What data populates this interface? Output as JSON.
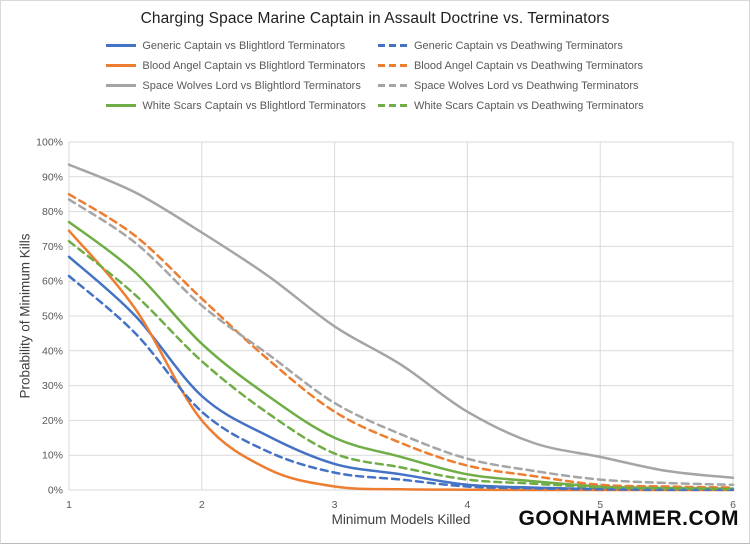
{
  "title": "Charging Space Marine Captain in Assault Doctrine vs. Terminators",
  "watermark": "GOONHAMMER.COM",
  "chart_data": {
    "type": "line",
    "title": "Charging Space Marine Captain in Assault Doctrine vs. Terminators",
    "xlabel": "Minimum Models Killed",
    "ylabel": "Probability of Minimum Kills",
    "xlim": [
      1,
      6
    ],
    "ylim": [
      0,
      100
    ],
    "xticks": [
      "1",
      "2",
      "3",
      "4",
      "5",
      "6"
    ],
    "yticks": [
      "0%",
      "10%",
      "20%",
      "30%",
      "40%",
      "50%",
      "60%",
      "70%",
      "80%",
      "90%",
      "100%"
    ],
    "grid": true,
    "legend_position": "top",
    "x": [
      1,
      1.5,
      2,
      2.5,
      3,
      3.5,
      4,
      4.5,
      5,
      5.5,
      6
    ],
    "series": [
      {
        "name": "Generic Captain vs Blightlord Terminators",
        "color": "#4472C4",
        "style": "solid",
        "values": [
          67,
          50,
          27,
          15.5,
          7.5,
          4.5,
          1.5,
          0.7,
          0.3,
          0.2,
          0.1
        ]
      },
      {
        "name": "Blood Angel Captain vs Blightlord Terminators",
        "color": "#ED7D31",
        "style": "solid",
        "values": [
          74.5,
          52,
          20,
          6,
          1,
          0.2,
          0.1,
          0,
          0,
          0,
          0
        ]
      },
      {
        "name": "Space Wolves Lord vs Blightlord Terminators",
        "color": "#A5A5A5",
        "style": "solid",
        "values": [
          93.5,
          85.5,
          74,
          61.5,
          47,
          36,
          22.5,
          13.5,
          9.5,
          5.5,
          3.5
        ]
      },
      {
        "name": "White Scars Captain vs Blightlord Terminators",
        "color": "#70AD47",
        "style": "solid",
        "values": [
          77,
          62.5,
          42,
          27,
          15,
          9.5,
          4.5,
          2.5,
          1,
          0.6,
          0.4
        ]
      },
      {
        "name": "Generic Captain vs Deathwing Terminators",
        "color": "#4472C4",
        "style": "dashed",
        "values": [
          61.5,
          45,
          22.5,
          11,
          5,
          3,
          1,
          0.5,
          0.2,
          0.1,
          0.1
        ]
      },
      {
        "name": "Blood Angel Captain vs Deathwing Terminators",
        "color": "#ED7D31",
        "style": "dashed",
        "values": [
          85,
          73,
          55,
          37.5,
          22.5,
          13.5,
          7,
          4,
          1.5,
          1,
          0.7
        ]
      },
      {
        "name": "Space Wolves Lord vs Deathwing Terminators",
        "color": "#A5A5A5",
        "style": "dashed",
        "values": [
          83.5,
          71,
          53,
          39,
          25,
          16,
          9,
          5.5,
          3,
          2,
          1.5
        ]
      },
      {
        "name": "White Scars Captain vs Deathwing Terminators",
        "color": "#70AD47",
        "style": "dashed",
        "values": [
          71.5,
          56,
          37,
          22,
          10.5,
          6.5,
          3,
          1.8,
          0.8,
          0.5,
          0.3
        ]
      }
    ],
    "colors": {
      "gridline": "#d9d9d9",
      "tick_label": "#595959",
      "axis_title": "#404040",
      "title": "#1f1f1f"
    }
  }
}
